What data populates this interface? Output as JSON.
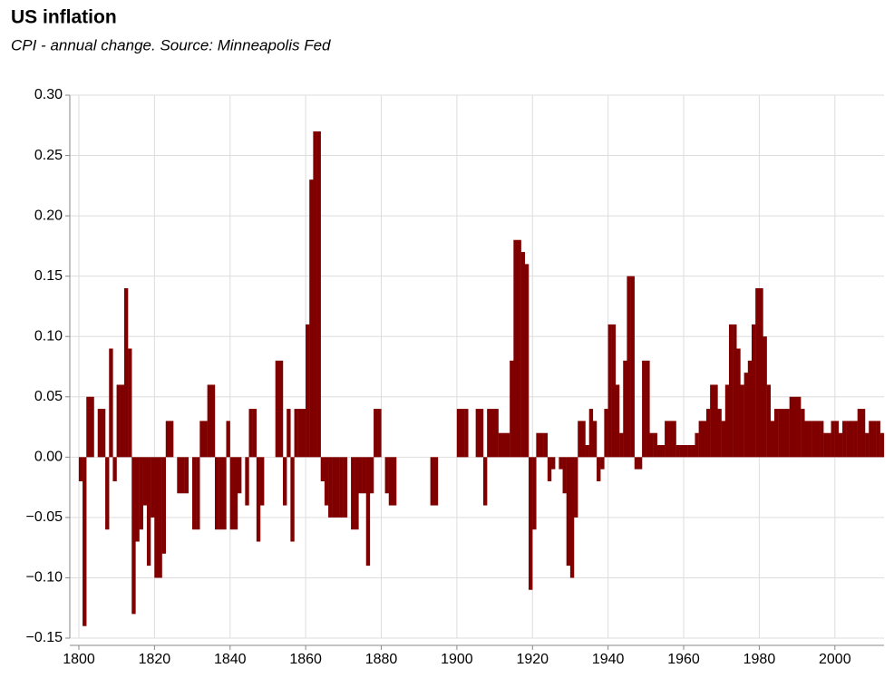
{
  "chart_data": {
    "type": "bar",
    "title": "US inflation",
    "subtitle": "CPI - annual change. Source: Minneapolis Fed",
    "color": "#800000",
    "grid": true,
    "x": [
      1800,
      1801,
      1802,
      1803,
      1804,
      1805,
      1806,
      1807,
      1808,
      1809,
      1810,
      1811,
      1812,
      1813,
      1814,
      1815,
      1816,
      1817,
      1818,
      1819,
      1820,
      1821,
      1822,
      1823,
      1824,
      1825,
      1826,
      1827,
      1828,
      1829,
      1830,
      1831,
      1832,
      1833,
      1834,
      1835,
      1836,
      1837,
      1838,
      1839,
      1840,
      1841,
      1842,
      1843,
      1844,
      1845,
      1846,
      1847,
      1848,
      1849,
      1850,
      1851,
      1852,
      1853,
      1854,
      1855,
      1856,
      1857,
      1858,
      1859,
      1860,
      1861,
      1862,
      1863,
      1864,
      1865,
      1866,
      1867,
      1868,
      1869,
      1870,
      1871,
      1872,
      1873,
      1874,
      1875,
      1876,
      1877,
      1878,
      1879,
      1880,
      1881,
      1882,
      1883,
      1884,
      1885,
      1886,
      1887,
      1888,
      1889,
      1890,
      1891,
      1892,
      1893,
      1894,
      1895,
      1896,
      1897,
      1898,
      1899,
      1900,
      1901,
      1902,
      1903,
      1904,
      1905,
      1906,
      1907,
      1908,
      1909,
      1910,
      1911,
      1912,
      1913,
      1914,
      1915,
      1916,
      1917,
      1918,
      1919,
      1920,
      1921,
      1922,
      1923,
      1924,
      1925,
      1926,
      1927,
      1928,
      1929,
      1930,
      1931,
      1932,
      1933,
      1934,
      1935,
      1936,
      1937,
      1938,
      1939,
      1940,
      1941,
      1942,
      1943,
      1944,
      1945,
      1946,
      1947,
      1948,
      1949,
      1950,
      1951,
      1952,
      1953,
      1954,
      1955,
      1956,
      1957,
      1958,
      1959,
      1960,
      1961,
      1962,
      1963,
      1964,
      1965,
      1966,
      1967,
      1968,
      1969,
      1970,
      1971,
      1972,
      1973,
      1974,
      1975,
      1976,
      1977,
      1978,
      1979,
      1980,
      1981,
      1982,
      1983,
      1984,
      1985,
      1986,
      1987,
      1988,
      1989,
      1990,
      1991,
      1992,
      1993,
      1994,
      1995,
      1996,
      1997,
      1998,
      1999,
      2000,
      2001,
      2002,
      2003,
      2004,
      2005,
      2006,
      2007,
      2008,
      2009,
      2010,
      2011,
      2012
    ],
    "values": [
      -0.02,
      -0.14,
      0.05,
      0.05,
      0,
      0.04,
      0.04,
      -0.06,
      0.09,
      -0.02,
      0.06,
      0.06,
      0.14,
      0.09,
      -0.13,
      -0.07,
      -0.06,
      -0.04,
      -0.09,
      -0.05,
      -0.1,
      -0.1,
      -0.08,
      0.03,
      0.03,
      0,
      -0.03,
      -0.03,
      -0.03,
      0,
      -0.06,
      -0.06,
      0.03,
      0.03,
      0.06,
      0.06,
      -0.06,
      -0.06,
      -0.06,
      0.03,
      -0.06,
      -0.06,
      -0.03,
      0,
      -0.04,
      0.04,
      0.04,
      -0.07,
      -0.04,
      0,
      0,
      0,
      0.08,
      0.08,
      -0.04,
      0.04,
      -0.07,
      0.04,
      0.04,
      0.04,
      0.11,
      0.23,
      0.27,
      0.27,
      -0.02,
      -0.04,
      -0.05,
      -0.05,
      -0.05,
      -0.05,
      -0.05,
      0,
      -0.06,
      -0.06,
      -0.03,
      -0.03,
      -0.09,
      -0.03,
      0.04,
      0.04,
      0,
      -0.03,
      -0.04,
      -0.04,
      0,
      0,
      0,
      0,
      0,
      0,
      0,
      0,
      0,
      -0.04,
      -0.04,
      0,
      0,
      0,
      0,
      0,
      0.04,
      0.04,
      0.04,
      0,
      0,
      0.04,
      0.04,
      -0.04,
      0.04,
      0.04,
      0.04,
      0.02,
      0.02,
      0.02,
      0.08,
      0.18,
      0.18,
      0.17,
      0.16,
      -0.11,
      -0.06,
      0.02,
      0.02,
      0.02,
      -0.02,
      -0.01,
      0,
      -0.01,
      -0.03,
      -0.09,
      -0.1,
      -0.05,
      0.03,
      0.03,
      0.01,
      0.04,
      0.03,
      -0.02,
      -0.01,
      0.04,
      0.11,
      0.11,
      0.06,
      0.02,
      0.08,
      0.15,
      0.15,
      -0.01,
      -0.01,
      0.08,
      0.08,
      0.02,
      0.02,
      0.01,
      0.01,
      0.03,
      0.03,
      0.03,
      0.01,
      0.01,
      0.01,
      0.01,
      0.01,
      0.02,
      0.03,
      0.03,
      0.04,
      0.06,
      0.06,
      0.04,
      0.03,
      0.06,
      0.11,
      0.11,
      0.09,
      0.06,
      0.07,
      0.08,
      0.11,
      0.14,
      0.14,
      0.1,
      0.06,
      0.03,
      0.04,
      0.04,
      0.04,
      0.04,
      0.05,
      0.05,
      0.05,
      0.04,
      0.03,
      0.03,
      0.03,
      0.03,
      0.03,
      0.02,
      0.02,
      0.03,
      0.03,
      0.02,
      0.03,
      0.03,
      0.03,
      0.03,
      0.04,
      0.04,
      0.02,
      0.03,
      0.03,
      0.03,
      0.02
    ],
    "xlim": [
      1800,
      2013
    ],
    "xticks": [
      1800,
      1820,
      1840,
      1860,
      1880,
      1900,
      1920,
      1940,
      1960,
      1980,
      2000
    ],
    "ylim": [
      -0.15,
      0.3
    ],
    "yticks": [
      {
        "value": -0.15,
        "label": "−0.15"
      },
      {
        "value": -0.1,
        "label": "−0.10"
      },
      {
        "value": -0.05,
        "label": "−0.05"
      },
      {
        "value": 0,
        "label": "0.00"
      },
      {
        "value": 0.05,
        "label": "0.05"
      },
      {
        "value": 0.1,
        "label": "0.10"
      },
      {
        "value": 0.15,
        "label": "0.15"
      },
      {
        "value": 0.2,
        "label": "0.20"
      },
      {
        "value": 0.25,
        "label": "0.25"
      },
      {
        "value": 0.3,
        "label": "0.30"
      }
    ]
  }
}
